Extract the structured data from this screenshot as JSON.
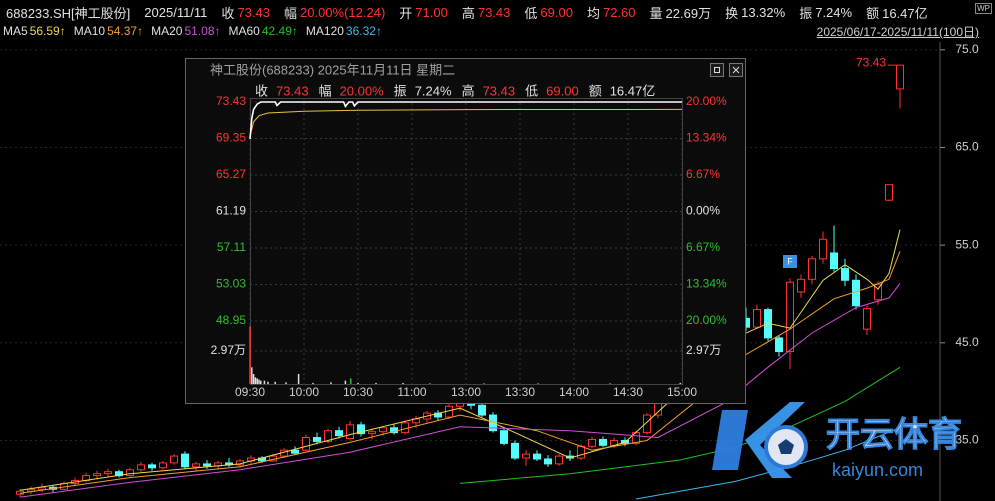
{
  "header": {
    "code": "688233.SH[神工股份]",
    "date": "2025/11/11",
    "fields": [
      {
        "label": "收",
        "value": "73.43",
        "color": "#ff3232"
      },
      {
        "label": "幅",
        "value": "20.00%(12.24)",
        "color": "#ff3232"
      },
      {
        "label": "开",
        "value": "71.00",
        "color": "#ff3232"
      },
      {
        "label": "高",
        "value": "73.43",
        "color": "#ff3232"
      },
      {
        "label": "低",
        "value": "69.00",
        "color": "#ff3232"
      },
      {
        "label": "均",
        "value": "72.60",
        "color": "#ff3232"
      },
      {
        "label": "量",
        "value": "22.69万",
        "color": "#e0e0e0"
      },
      {
        "label": "换",
        "value": "13.32%",
        "color": "#e0e0e0"
      },
      {
        "label": "振",
        "value": "7.24%",
        "color": "#e0e0e0"
      },
      {
        "label": "额",
        "value": "16.47亿",
        "color": "#e0e0e0"
      }
    ],
    "range": "2025/06/17-2025/11/11(100日)",
    "icon": "WP"
  },
  "chart_data": [
    {
      "type": "candlestick",
      "open": [
        29.5,
        29.8,
        30.0,
        30.2,
        30.0,
        30.6,
        30.9,
        31.4,
        31.6,
        31.8,
        31.4,
        32.0,
        32.5,
        32.2,
        32.7,
        33.6,
        32.3,
        32.6,
        32.4,
        32.7,
        32.5,
        32.9,
        33.2,
        32.9,
        33.4,
        34.0,
        34.0,
        35.3,
        34.9,
        36.0,
        35.2,
        36.6,
        35.7,
        35.9,
        36.3,
        35.8,
        36.8,
        37.2,
        37.8,
        37.4,
        38.5,
        38.9,
        38.6,
        37.6,
        36.0,
        34.7,
        33.2,
        33.6,
        33.1,
        32.6,
        33.4,
        33.2,
        34.4,
        35.1,
        34.5,
        35.0,
        34.7,
        35.8,
        37.6,
        39.1,
        40.2,
        39.9,
        42.0,
        43.1,
        42.8,
        45.0,
        47.5,
        46.6,
        48.4,
        45.5,
        44.1,
        50.2,
        51.5,
        53.6,
        54.2,
        52.6,
        51.4,
        46.4,
        49.4,
        59.6,
        71.0
      ],
      "high": [
        30.0,
        30.3,
        30.6,
        30.4,
        30.8,
        31.2,
        31.7,
        31.9,
        32.1,
        32.0,
        32.2,
        32.8,
        32.7,
        32.9,
        33.6,
        33.9,
        32.8,
        33.0,
        32.9,
        33.2,
        33.1,
        33.5,
        33.4,
        33.6,
        34.2,
        34.4,
        35.6,
        35.8,
        36.2,
        36.4,
        37.0,
        36.9,
        36.2,
        36.5,
        36.7,
        37.0,
        37.5,
        38.0,
        38.1,
        38.7,
        39.3,
        39.4,
        38.9,
        37.9,
        36.4,
        35.0,
        34.0,
        34.0,
        33.5,
        33.6,
        34.0,
        34.6,
        35.4,
        35.4,
        35.3,
        35.3,
        36.0,
        37.8,
        39.4,
        40.5,
        41.0,
        42.3,
        43.5,
        44.2,
        45.3,
        47.8,
        48.6,
        48.9,
        48.6,
        45.8,
        51.6,
        52.0,
        53.9,
        56.4,
        57.0,
        53.6,
        52.0,
        48.8,
        51.3,
        61.19,
        73.43
      ],
      "low": [
        29.2,
        29.5,
        29.7,
        29.6,
        29.9,
        30.3,
        30.7,
        31.0,
        31.2,
        31.2,
        31.3,
        31.8,
        31.9,
        32.0,
        32.5,
        32.1,
        31.9,
        32.1,
        32.0,
        32.3,
        32.2,
        32.6,
        32.7,
        32.8,
        33.2,
        33.5,
        33.9,
        34.6,
        34.7,
        35.2,
        35.0,
        35.4,
        35.1,
        35.5,
        35.6,
        35.6,
        36.3,
        36.8,
        37.0,
        37.2,
        38.0,
        38.2,
        37.4,
        35.8,
        34.5,
        33.0,
        32.4,
        32.9,
        32.3,
        32.4,
        32.9,
        33.0,
        34.2,
        34.3,
        34.2,
        34.4,
        34.5,
        35.6,
        37.3,
        38.7,
        39.5,
        39.7,
        41.6,
        42.3,
        42.6,
        44.8,
        46.2,
        46.4,
        45.2,
        43.6,
        42.3,
        49.6,
        51.0,
        53.1,
        52.3,
        50.8,
        48.4,
        45.8,
        48.9,
        59.5,
        69.0
      ],
      "close": [
        29.8,
        30.0,
        30.2,
        30.0,
        30.6,
        30.9,
        31.4,
        31.6,
        31.8,
        31.4,
        32.0,
        32.5,
        32.2,
        32.7,
        33.4,
        32.3,
        32.6,
        32.4,
        32.7,
        32.5,
        32.9,
        33.2,
        32.9,
        33.4,
        34.0,
        33.7,
        35.3,
        34.9,
        36.0,
        35.5,
        36.6,
        35.7,
        35.9,
        36.3,
        35.8,
        36.8,
        37.2,
        37.8,
        37.4,
        38.5,
        38.9,
        38.6,
        37.6,
        36.0,
        34.7,
        33.2,
        33.6,
        33.1,
        32.6,
        33.4,
        33.2,
        34.4,
        35.1,
        34.5,
        35.0,
        34.7,
        35.8,
        37.6,
        39.1,
        40.2,
        39.9,
        42.0,
        43.1,
        42.8,
        45.0,
        47.5,
        46.6,
        48.4,
        45.5,
        44.1,
        51.2,
        51.5,
        53.6,
        55.6,
        52.6,
        51.4,
        48.8,
        48.5,
        51.0,
        61.19,
        73.43
      ],
      "up_color": "#ff3232",
      "down_color": "#54fcfc",
      "ylim": [
        28.8,
        75.8
      ],
      "yticks": [
        {
          "value": 75,
          "label": "75.0"
        },
        {
          "value": 65,
          "label": "65.0"
        },
        {
          "value": 55,
          "label": "55.0"
        },
        {
          "value": 45,
          "label": "45.0"
        },
        {
          "value": 35,
          "label": "35.0"
        }
      ],
      "grid": true,
      "marker": "F",
      "series": [
        {
          "name": "MA5",
          "current_label": "56.59↑",
          "color": "#f2d94e",
          "x": [
            0,
            10,
            20,
            30,
            40,
            45,
            50,
            55,
            60,
            65,
            68,
            70,
            73,
            75,
            77,
            78,
            79,
            80
          ],
          "values": [
            29.9,
            31.6,
            32.6,
            35.6,
            38.3,
            35.8,
            33.2,
            34.8,
            40.0,
            45.5,
            47.0,
            46.5,
            51.4,
            53.0,
            51.5,
            50.5,
            52.1,
            56.59
          ]
        },
        {
          "name": "MA10",
          "current_label": "54.37↑",
          "color": "#f0a030",
          "x": [
            0,
            10,
            20,
            30,
            40,
            47,
            52,
            57,
            62,
            66,
            70,
            74,
            77,
            79,
            80
          ],
          "values": [
            29.6,
            31.2,
            32.3,
            34.8,
            37.6,
            36.0,
            34.0,
            35.0,
            39.5,
            43.8,
            46.4,
            49.5,
            50.6,
            51.5,
            54.37
          ]
        },
        {
          "name": "MA20",
          "current_label": "51.08↑",
          "color": "#d050d8",
          "x": [
            0,
            10,
            20,
            30,
            40,
            50,
            58,
            64,
            68,
            72,
            76,
            79,
            80
          ],
          "values": [
            29.2,
            30.7,
            32.0,
            33.8,
            36.4,
            36.0,
            35.3,
            38.8,
            42.5,
            46.0,
            48.6,
            49.6,
            51.08
          ]
        },
        {
          "name": "MA60",
          "current_label": "42.49↑",
          "color": "#22c022",
          "x": [
            40,
            50,
            60,
            65,
            70,
            75,
            80
          ],
          "values": [
            30.6,
            31.6,
            33.0,
            34.3,
            36.4,
            39.0,
            42.49
          ]
        },
        {
          "name": "MA120",
          "current_label": "36.32↑",
          "color": "#40b8f0",
          "x": [
            56,
            65,
            70,
            75,
            80
          ],
          "values": [
            29.0,
            30.8,
            32.3,
            34.0,
            36.32
          ]
        }
      ]
    },
    {
      "type": "line",
      "title": "神工股份(688233) 2025年11月11日 星期二",
      "info": [
        {
          "label": "收",
          "value": "73.43",
          "color": "#ff3232"
        },
        {
          "label": "幅",
          "value": "20.00%",
          "color": "#ff3232"
        },
        {
          "label": "振",
          "value": "7.24%",
          "color": "#e0e0e0"
        },
        {
          "label": "高",
          "value": "73.43",
          "color": "#ff3232"
        },
        {
          "label": "低",
          "value": "69.00",
          "color": "#ff3232"
        },
        {
          "label": "额",
          "value": "16.47亿",
          "color": "#e0e0e0"
        }
      ],
      "xlim": [
        0,
        240
      ],
      "xticks": [
        {
          "value": 0,
          "label": "09:30"
        },
        {
          "value": 30,
          "label": "10:00"
        },
        {
          "value": 60,
          "label": "10:30"
        },
        {
          "value": 90,
          "label": "11:00"
        },
        {
          "value": 120,
          "label": "13:00"
        },
        {
          "value": 150,
          "label": "13:30"
        },
        {
          "value": 180,
          "label": "14:00"
        },
        {
          "value": 210,
          "label": "14:30"
        },
        {
          "value": 240,
          "label": "15:00"
        }
      ],
      "ylim": [
        48.95,
        73.43
      ],
      "yticks": [
        73.43,
        69.35,
        65.27,
        61.19,
        57.11,
        53.03,
        48.95
      ],
      "y2lim": [
        -20,
        20
      ],
      "y2ticks": [
        {
          "value": 20,
          "label": "20.00%"
        },
        {
          "value": 13.34,
          "label": "13.34%"
        },
        {
          "value": 6.67,
          "label": "6.67%"
        },
        {
          "value": 0,
          "label": "0.00%"
        },
        {
          "value": -6.67,
          "label": "6.67%"
        },
        {
          "value": -13.34,
          "label": "13.34%"
        },
        {
          "value": -20,
          "label": "20.00%"
        }
      ],
      "up_color": "#ff3232",
      "down_color": "#2fbf2f",
      "flat_color": "#e0e0e0",
      "series": [
        {
          "color": "#ffffff",
          "x": [
            0,
            1,
            2,
            4,
            6,
            14,
            15,
            17,
            52,
            53,
            55,
            57,
            58,
            60,
            240
          ],
          "values": [
            69.3,
            71.6,
            72.6,
            73.2,
            73.43,
            73.43,
            73.05,
            73.43,
            73.43,
            72.95,
            73.43,
            73.43,
            73.0,
            73.43,
            73.43
          ]
        },
        {
          "color": "#e8c040",
          "x": [
            0,
            2,
            5,
            10,
            30,
            60,
            120,
            240
          ],
          "values": [
            69.6,
            71.2,
            71.9,
            72.2,
            72.4,
            72.5,
            72.58,
            72.6
          ]
        }
      ],
      "volume": {
        "ylim": [
          0,
          5.94
        ],
        "ticks": [
          {
            "value": 2.97,
            "label": "2.97万"
          }
        ],
        "x": [
          0,
          1,
          2,
          3,
          4,
          5,
          6,
          8,
          10,
          14,
          20,
          27,
          35,
          45,
          53,
          56,
          60,
          70,
          85,
          100,
          130,
          160,
          200,
          239
        ],
        "values": [
          5.2,
          1.5,
          0.9,
          0.6,
          0.5,
          0.4,
          0.3,
          0.3,
          0.2,
          0.2,
          0.15,
          0.9,
          0.1,
          0.15,
          0.3,
          0.5,
          0.1,
          0.1,
          0.1,
          0.05,
          0.05,
          0.05,
          0.05,
          0.1
        ],
        "colors": [
          "#ff3232",
          "#e0e0e0",
          "#e0e0e0",
          "#e0e0e0",
          "#e0e0e0",
          "#e0e0e0",
          "#e0e0e0",
          "#e0e0e0",
          "#e0e0e0",
          "#e0e0e0",
          "#e0e0e0",
          "#e0e0e0",
          "#e0e0e0",
          "#e0e0e0",
          "#e0e0e0",
          "#2fbf2f",
          "#e0e0e0",
          "#e0e0e0",
          "#e0e0e0",
          "#e0e0e0",
          "#e0e0e0",
          "#e0e0e0",
          "#e0e0e0",
          "#e0e0e0"
        ]
      }
    }
  ],
  "watermark": {
    "brand": "开云体育",
    "site": "kaiyun.com"
  }
}
